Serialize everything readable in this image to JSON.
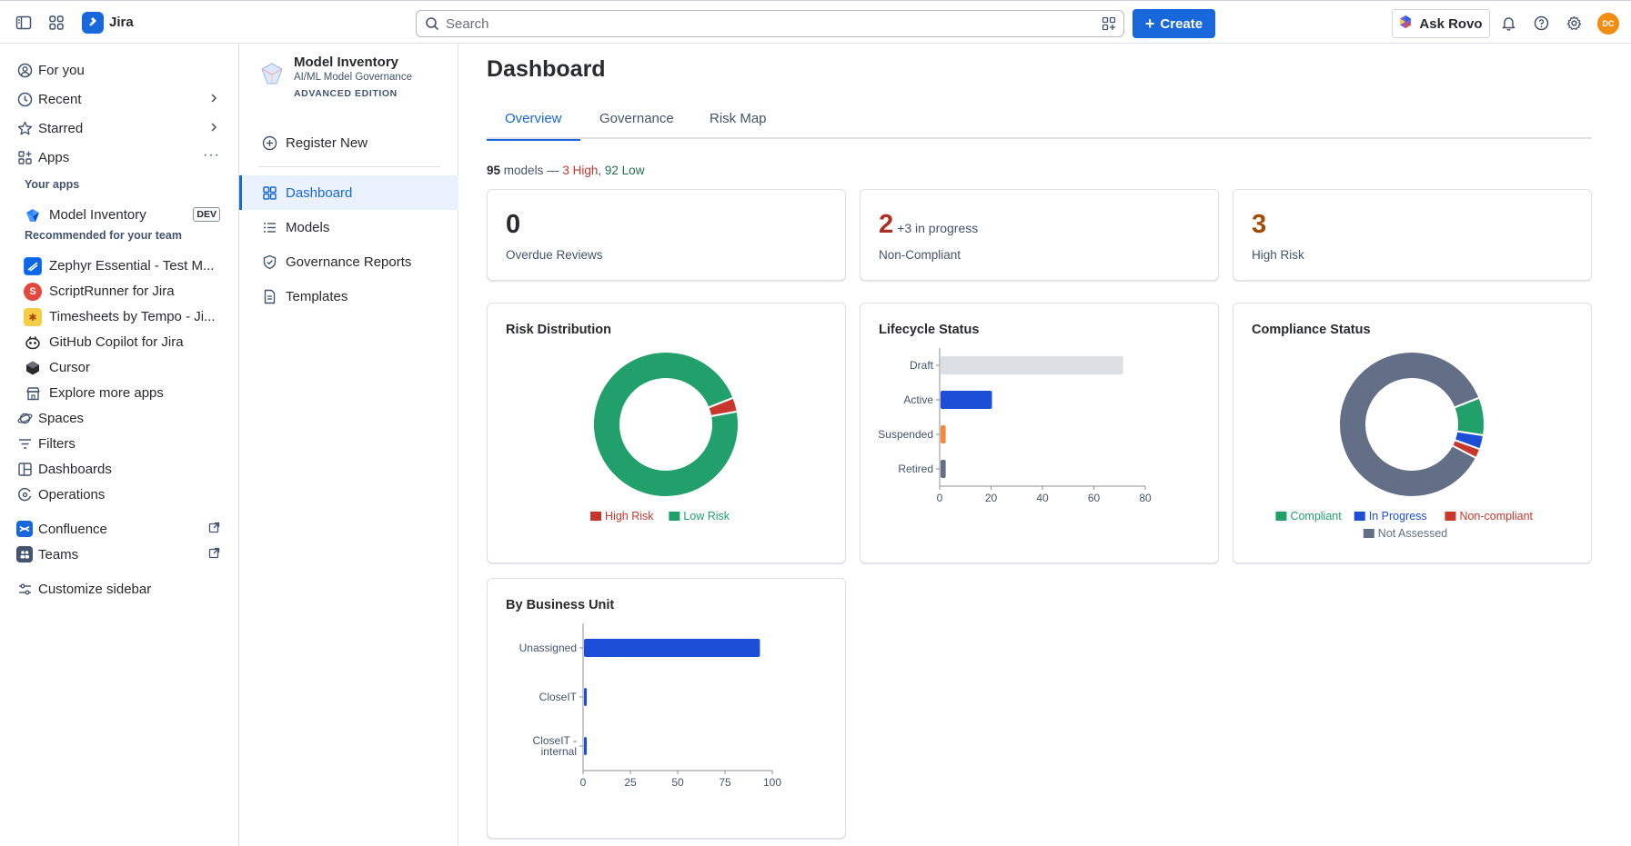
{
  "topbar": {
    "app_name": "Jira",
    "search_placeholder": "Search",
    "create_label": "Create",
    "rovo_label": "Ask Rovo",
    "avatar_initials": "DC"
  },
  "sidebar": {
    "nav": [
      {
        "label": "For you",
        "icon": "user-circle-icon"
      },
      {
        "label": "Recent",
        "icon": "clock-icon"
      },
      {
        "label": "Starred",
        "icon": "star-icon"
      },
      {
        "label": "Apps",
        "icon": "apps-icon"
      }
    ],
    "your_apps_heading": "Your apps",
    "your_apps": [
      {
        "label": "Model Inventory",
        "badge": "DEV"
      }
    ],
    "recommended_heading": "Recommended for your team",
    "recommended": [
      {
        "label": "Zephyr Essential - Test M..."
      },
      {
        "label": "ScriptRunner for Jira"
      },
      {
        "label": "Timesheets by Tempo - Ji..."
      },
      {
        "label": "GitHub Copilot for Jira"
      },
      {
        "label": "Cursor"
      },
      {
        "label": "Explore more apps"
      }
    ],
    "nav2": [
      {
        "label": "Spaces"
      },
      {
        "label": "Filters"
      },
      {
        "label": "Dashboards"
      },
      {
        "label": "Operations"
      }
    ],
    "external": [
      {
        "label": "Confluence"
      },
      {
        "label": "Teams"
      }
    ],
    "customize_label": "Customize sidebar"
  },
  "project": {
    "title": "Model Inventory",
    "subtitle": "AI/ML Model Governance",
    "edition": "ADVANCED EDITION",
    "register_label": "Register New",
    "nav": [
      {
        "label": "Dashboard",
        "active": true
      },
      {
        "label": "Models"
      },
      {
        "label": "Governance Reports"
      },
      {
        "label": "Templates"
      }
    ]
  },
  "main": {
    "title": "Dashboard",
    "tabs": [
      {
        "label": "Overview",
        "active": true
      },
      {
        "label": "Governance"
      },
      {
        "label": "Risk Map"
      }
    ],
    "summary": {
      "count": "95",
      "models_word": "models —",
      "high": "3 High",
      "sep": ",",
      "low": "92 Low"
    },
    "kpis": [
      {
        "value": "0",
        "extra": "",
        "label": "Overdue Reviews",
        "color": "#292a2e"
      },
      {
        "value": "2",
        "extra": "+3 in progress",
        "label": "Non-Compliant",
        "color": "#ae2e24"
      },
      {
        "value": "3",
        "extra": "",
        "label": "High Risk",
        "color": "#a54800"
      }
    ]
  },
  "colors": {
    "accent": "#1868db",
    "high_risk": "#c9372c",
    "low_risk": "#22a06b",
    "bar_blue": "#1d4ed8",
    "bar_gray": "#dcdfe4",
    "bar_orange": "#f38a3f",
    "bar_slate": "#626f86"
  },
  "chart_data": [
    {
      "type": "pie",
      "title": "Risk Distribution",
      "donut": true,
      "categories": [
        "High Risk",
        "Low Risk"
      ],
      "values": [
        3,
        92
      ],
      "colors": [
        "#c9372c",
        "#22a06b"
      ],
      "legend": "bottom"
    },
    {
      "type": "bar",
      "orientation": "horizontal",
      "title": "Lifecycle Status",
      "categories": [
        "Draft",
        "Active",
        "Suspended",
        "Retired"
      ],
      "values": [
        71,
        20,
        2,
        2
      ],
      "colors": [
        "#dcdfe4",
        "#1d4ed8",
        "#f38a3f",
        "#626f86"
      ],
      "xlim": [
        0,
        80
      ],
      "xticks": [
        0,
        20,
        40,
        60,
        80
      ]
    },
    {
      "type": "pie",
      "title": "Compliance Status",
      "donut": true,
      "categories": [
        "Compliant",
        "In Progress",
        "Non-compliant",
        "Not Assessed"
      ],
      "values": [
        8,
        3,
        2,
        82
      ],
      "colors": [
        "#22a06b",
        "#1d4ed8",
        "#c9372c",
        "#626f86"
      ],
      "legend": "bottom"
    },
    {
      "type": "bar",
      "orientation": "horizontal",
      "title": "By Business Unit",
      "categories": [
        "Unassigned",
        "CloseIT",
        "CloseIT - internal"
      ],
      "category_lines": [
        [
          "Unassigned"
        ],
        [
          "CloseIT"
        ],
        [
          "CloseIT -",
          "internal"
        ]
      ],
      "values": [
        93,
        1,
        1
      ],
      "colors": [
        "#1d4ed8",
        "#1d4ed8",
        "#1d4ed8"
      ],
      "xlim": [
        0,
        100
      ],
      "xticks": [
        0,
        25,
        50,
        75,
        100
      ]
    }
  ]
}
